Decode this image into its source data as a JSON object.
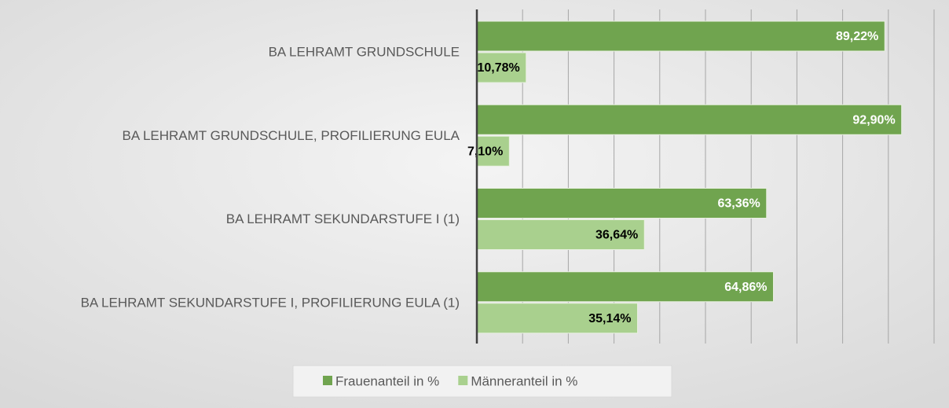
{
  "chart_data": {
    "type": "barh",
    "categories": [
      "BA LEHRAMT GRUNDSCHULE",
      "BA LEHRAMT GRUNDSCHULE, PROFILIERUNG EULA",
      "BA LEHRAMT SEKUNDARSTUFE I (1)",
      "BA LEHRAMT SEKUNDARSTUFE I, PROFILIERUNG EULA (1)"
    ],
    "series": [
      {
        "name": "Frauenanteil in %",
        "color": "#70a44f",
        "values": [
          89.22,
          92.9,
          63.36,
          64.86
        ],
        "value_labels": [
          "89,22%",
          "92,90%",
          "63,36%",
          "64,86%"
        ]
      },
      {
        "name": "Männeranteil in %",
        "color": "#a9d08e",
        "values": [
          10.78,
          7.1,
          36.64,
          35.14
        ],
        "value_labels": [
          "10,78%",
          "7,10%",
          "36,64%",
          "35,14%"
        ]
      }
    ],
    "xlim": [
      0,
      100
    ],
    "xticks": [
      0,
      10,
      20,
      30,
      40,
      50,
      60,
      70,
      80,
      90,
      100
    ],
    "grid": true,
    "legend": "bottom"
  }
}
